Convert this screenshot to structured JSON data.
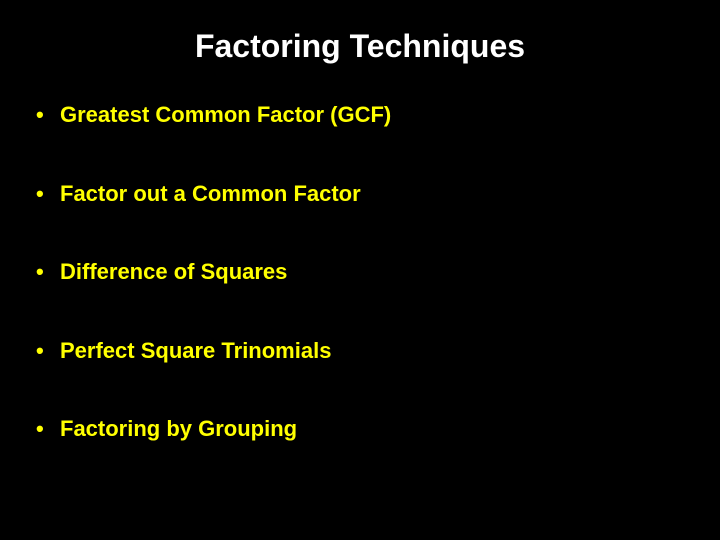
{
  "slide": {
    "title": "Factoring Techniques",
    "title_color": "#ffffff",
    "title_fontsize": 32,
    "title_fontweight": "bold",
    "background_color": "#000000",
    "bullet_color": "#ffff00",
    "bullet_fontsize": 22,
    "bullet_fontweight": "bold",
    "bullets": [
      "Greatest Common Factor (GCF)",
      "Factor out a Common Factor",
      "Difference of Squares",
      "Perfect Square Trinomials",
      "Factoring by Grouping"
    ]
  }
}
